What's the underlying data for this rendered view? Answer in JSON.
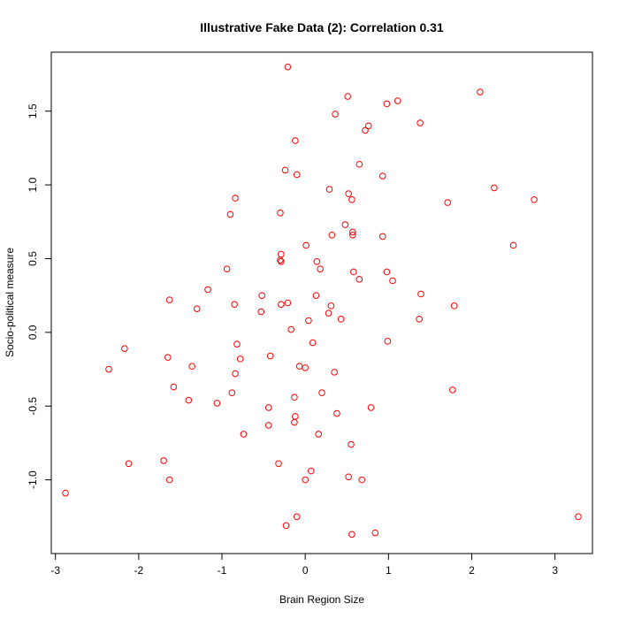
{
  "chart_data": {
    "type": "scatter",
    "title": "Illustrative Fake Data (2): Correlation 0.31",
    "xlabel": "Brain Region Size",
    "ylabel": "Socio-political measure",
    "xlim": [
      -3.05,
      3.45
    ],
    "ylim": [
      -1.5,
      1.9
    ],
    "xticks": [
      -3,
      -2,
      -1,
      0,
      1,
      2,
      3
    ],
    "yticks": [
      -1.0,
      -0.5,
      0.0,
      0.5,
      1.0,
      1.5
    ],
    "xtick_labels": [
      "-3",
      "-2",
      "-1",
      "0",
      "1",
      "2",
      "3"
    ],
    "ytick_labels": [
      "-1.0",
      "-0.5",
      "0.0",
      "0.5",
      "1.0",
      "1.5"
    ],
    "grid": false,
    "marker_color": "#ff0000",
    "marker": "open-circle",
    "series": [
      {
        "points": [
          [
            -0.21,
            1.8
          ],
          [
            0.51,
            1.6
          ],
          [
            1.11,
            1.57
          ],
          [
            0.98,
            1.55
          ],
          [
            2.1,
            1.63
          ],
          [
            0.36,
            1.48
          ],
          [
            0.76,
            1.4
          ],
          [
            0.72,
            1.37
          ],
          [
            1.38,
            1.42
          ],
          [
            -0.12,
            1.3
          ],
          [
            0.65,
            1.14
          ],
          [
            -0.24,
            1.1
          ],
          [
            -0.1,
            1.07
          ],
          [
            0.93,
            1.06
          ],
          [
            0.29,
            0.97
          ],
          [
            2.27,
            0.98
          ],
          [
            0.52,
            0.94
          ],
          [
            0.56,
            0.9
          ],
          [
            -0.84,
            0.91
          ],
          [
            1.71,
            0.88
          ],
          [
            2.75,
            0.9
          ],
          [
            -0.3,
            0.81
          ],
          [
            -0.9,
            0.8
          ],
          [
            0.48,
            0.73
          ],
          [
            0.57,
            0.68
          ],
          [
            0.32,
            0.66
          ],
          [
            0.57,
            0.66
          ],
          [
            0.93,
            0.65
          ],
          [
            2.5,
            0.59
          ],
          [
            0.01,
            0.59
          ],
          [
            -0.29,
            0.53
          ],
          [
            -0.3,
            0.49
          ],
          [
            -0.29,
            0.48
          ],
          [
            0.14,
            0.48
          ],
          [
            0.18,
            0.43
          ],
          [
            -0.94,
            0.43
          ],
          [
            0.58,
            0.41
          ],
          [
            0.98,
            0.41
          ],
          [
            1.05,
            0.35
          ],
          [
            0.65,
            0.36
          ],
          [
            -1.17,
            0.29
          ],
          [
            -0.52,
            0.25
          ],
          [
            0.13,
            0.25
          ],
          [
            1.39,
            0.26
          ],
          [
            -1.63,
            0.22
          ],
          [
            -0.29,
            0.19
          ],
          [
            -0.21,
            0.2
          ],
          [
            -0.85,
            0.19
          ],
          [
            0.31,
            0.18
          ],
          [
            1.79,
            0.18
          ],
          [
            -1.3,
            0.16
          ],
          [
            -0.53,
            0.14
          ],
          [
            0.28,
            0.13
          ],
          [
            0.43,
            0.09
          ],
          [
            1.37,
            0.09
          ],
          [
            0.04,
            0.08
          ],
          [
            -0.17,
            0.02
          ],
          [
            0.09,
            -0.07
          ],
          [
            -0.82,
            -0.08
          ],
          [
            0.99,
            -0.06
          ],
          [
            -2.17,
            -0.11
          ],
          [
            -1.65,
            -0.17
          ],
          [
            -0.78,
            -0.18
          ],
          [
            -0.42,
            -0.16
          ],
          [
            -0.07,
            -0.23
          ],
          [
            0.0,
            -0.24
          ],
          [
            -2.36,
            -0.25
          ],
          [
            -1.36,
            -0.23
          ],
          [
            0.35,
            -0.27
          ],
          [
            -0.84,
            -0.28
          ],
          [
            -1.58,
            -0.37
          ],
          [
            0.2,
            -0.41
          ],
          [
            -0.88,
            -0.41
          ],
          [
            1.77,
            -0.39
          ],
          [
            -1.4,
            -0.46
          ],
          [
            -0.13,
            -0.44
          ],
          [
            -1.06,
            -0.48
          ],
          [
            -0.44,
            -0.51
          ],
          [
            0.79,
            -0.51
          ],
          [
            0.38,
            -0.55
          ],
          [
            -0.12,
            -0.57
          ],
          [
            -0.13,
            -0.61
          ],
          [
            -0.44,
            -0.63
          ],
          [
            0.16,
            -0.69
          ],
          [
            -0.74,
            -0.69
          ],
          [
            0.55,
            -0.76
          ],
          [
            -1.7,
            -0.87
          ],
          [
            -2.12,
            -0.89
          ],
          [
            -0.32,
            -0.89
          ],
          [
            0.07,
            -0.94
          ],
          [
            0.52,
            -0.98
          ],
          [
            -1.63,
            -1.0
          ],
          [
            0.0,
            -1.0
          ],
          [
            0.68,
            -1.0
          ],
          [
            -2.88,
            -1.09
          ],
          [
            3.28,
            -1.25
          ],
          [
            -0.1,
            -1.25
          ],
          [
            -0.23,
            -1.31
          ],
          [
            0.56,
            -1.37
          ],
          [
            0.84,
            -1.36
          ]
        ]
      }
    ]
  }
}
